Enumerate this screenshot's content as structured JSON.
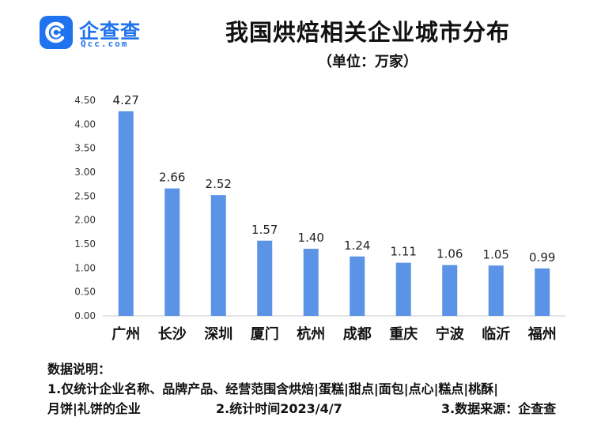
{
  "logo": {
    "name": "企查查",
    "sub": "Qcc.com",
    "mark_color": "#1f73ee"
  },
  "chart_data": {
    "type": "bar",
    "title": "我国烘焙相关企业城市分布",
    "subtitle": "（单位：万家）",
    "categories": [
      "广州",
      "长沙",
      "深圳",
      "厦门",
      "杭州",
      "成都",
      "重庆",
      "宁波",
      "临沂",
      "福州"
    ],
    "values": [
      4.27,
      2.66,
      2.52,
      1.57,
      1.4,
      1.24,
      1.11,
      1.06,
      1.05,
      0.99
    ],
    "value_labels": [
      "4.27",
      "2.66",
      "2.52",
      "1.57",
      "1.40",
      "1.24",
      "1.11",
      "1.06",
      "1.05",
      "0.99"
    ],
    "ylim": [
      0,
      4.5
    ],
    "yticks": [
      "0.00",
      "0.50",
      "1.00",
      "1.50",
      "2.00",
      "2.50",
      "3.00",
      "3.50",
      "4.00",
      "4.50"
    ],
    "bar_color": "#5b93e6",
    "grid": false
  },
  "notes": {
    "heading": "数据说明：",
    "line1": "1.仅统计企业名称、品牌产品、经营范围含烘焙|蛋糕|甜点|面包|点心|糕点|桃酥|",
    "line2a": "月饼|礼饼的企业",
    "line2b": "2.统计时间2023/4/7",
    "line2c": "3.数据来源：企查查"
  }
}
